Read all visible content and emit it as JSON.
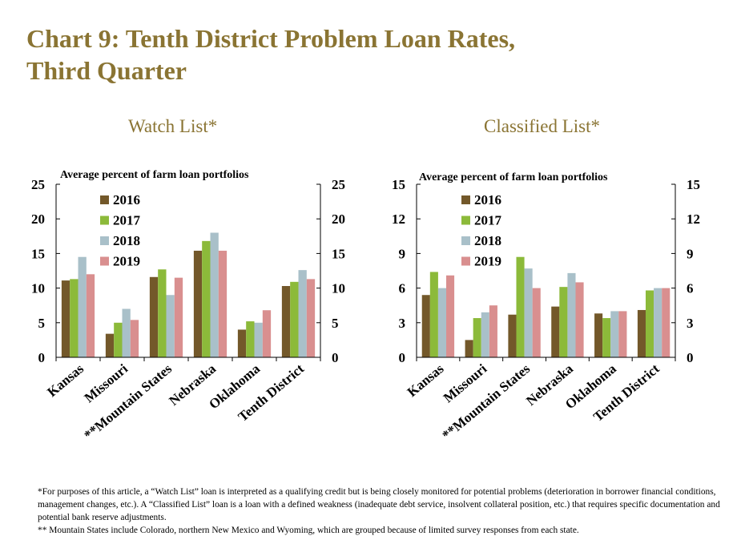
{
  "title_line1": "Chart 9: Tenth District Problem Loan Rates,",
  "title_line2": "Third Quarter",
  "footnotes": [
    "*For purposes of this article, a “Watch List” loan is interpreted as a qualifying credit but is being closely monitored for potential problems (deterioration in borrower financial conditions, management changes, etc.). A “Classified List” loan is a loan with a defined weakness (inadequate debt service, insolvent collateral position, etc.) that requires specific documentation and potential bank reserve adjustments.",
    "** Mountain States include Colorado, northern New Mexico and Wyoming, which are grouped because of limited survey responses from each state."
  ],
  "series_colors": [
    "#73582a",
    "#8cba3a",
    "#a9c0c9",
    "#d98f8f"
  ],
  "chart_data": [
    {
      "type": "bar",
      "title": "Watch List*",
      "ylabel": "Average percent of farm loan portfolios",
      "xlabel": "",
      "categories": [
        "Kansas",
        "Missouri",
        "**Mountain States",
        "Nebraska",
        "Oklahoma",
        "Tenth District"
      ],
      "ylim": [
        0,
        25
      ],
      "yticks": [
        0,
        5,
        10,
        15,
        20,
        25
      ],
      "dual_y_axis": true,
      "legend_position": "top-left",
      "grid": false,
      "series": [
        {
          "name": "2016",
          "values": [
            11.1,
            3.4,
            11.6,
            15.4,
            4.0,
            10.3
          ]
        },
        {
          "name": "2017",
          "values": [
            11.3,
            5.0,
            12.7,
            16.8,
            5.2,
            10.9
          ]
        },
        {
          "name": "2018",
          "values": [
            14.5,
            7.0,
            9.0,
            18.0,
            5.0,
            12.6
          ]
        },
        {
          "name": "2019",
          "values": [
            12.0,
            5.4,
            11.5,
            15.4,
            6.8,
            11.3
          ]
        }
      ]
    },
    {
      "type": "bar",
      "title": "Classified List*",
      "ylabel": "Average percent of farm loan portfolios",
      "xlabel": "",
      "categories": [
        "Kansas",
        "Missouri",
        "**Mountain States",
        "Nebraska",
        "Oklahoma",
        "Tenth District"
      ],
      "ylim": [
        0,
        15
      ],
      "yticks": [
        0,
        3,
        6,
        9,
        12,
        15
      ],
      "dual_y_axis": true,
      "legend_position": "top-left",
      "grid": false,
      "series": [
        {
          "name": "2016",
          "values": [
            5.4,
            1.5,
            3.7,
            4.4,
            3.8,
            4.1
          ]
        },
        {
          "name": "2017",
          "values": [
            7.4,
            3.4,
            8.7,
            6.1,
            3.4,
            5.8
          ]
        },
        {
          "name": "2018",
          "values": [
            6.0,
            3.9,
            7.7,
            7.3,
            4.0,
            6.0
          ]
        },
        {
          "name": "2019",
          "values": [
            7.1,
            4.5,
            6.0,
            6.5,
            4.0,
            6.0
          ]
        }
      ]
    }
  ]
}
